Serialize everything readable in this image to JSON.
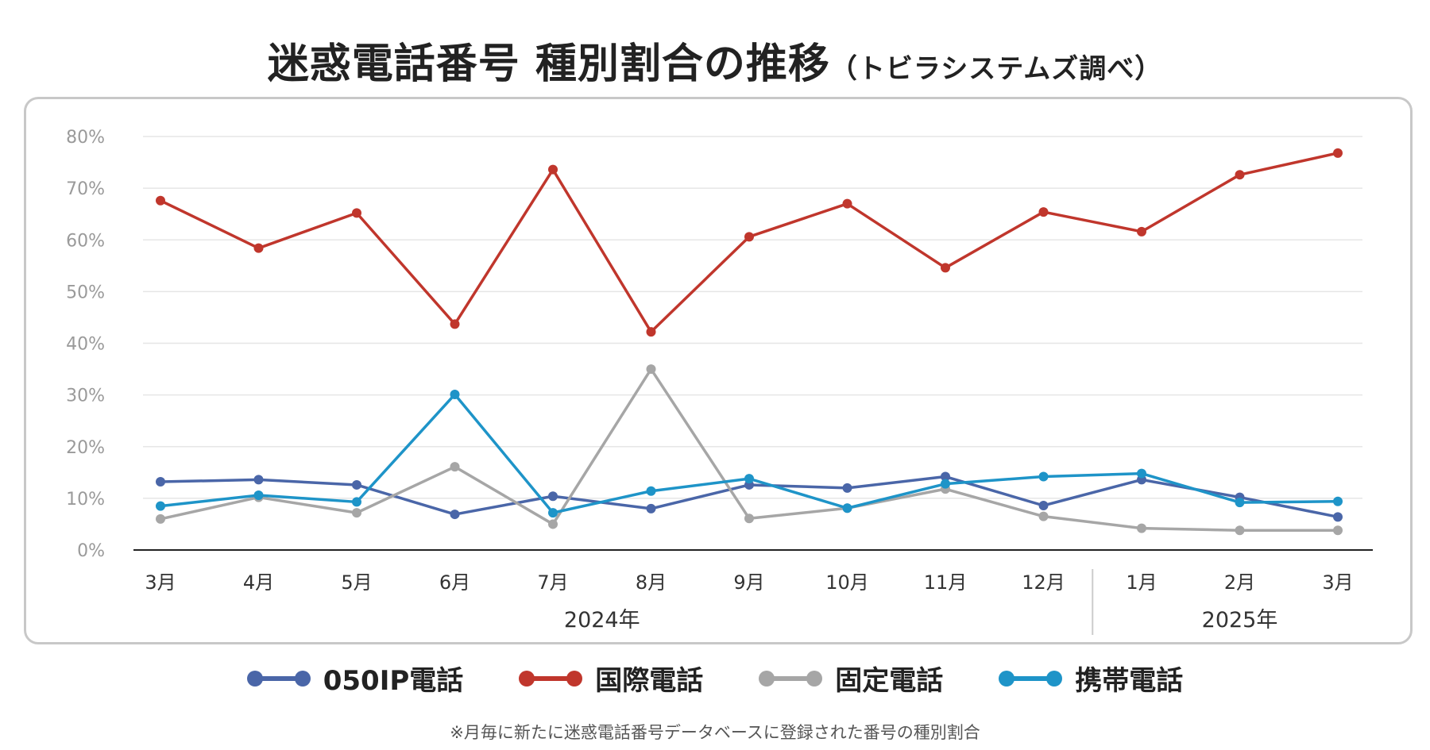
{
  "title": {
    "main": "迷惑電話番号 種別割合の推移",
    "sub": "（トビラシステムズ調べ）"
  },
  "footnote": "※月毎に新たに迷惑電話番号データベースに登録された番号の種別割合",
  "chart_data": {
    "type": "line",
    "title": "迷惑電話番号 種別割合の推移",
    "categories": [
      "3月",
      "4月",
      "5月",
      "6月",
      "7月",
      "8月",
      "9月",
      "10月",
      "11月",
      "12月",
      "1月",
      "2月",
      "3月"
    ],
    "year_groups": [
      {
        "label": "2024年",
        "start": 0,
        "end": 9
      },
      {
        "label": "2025年",
        "start": 10,
        "end": 12
      }
    ],
    "y_ticks": [
      "0%",
      "10%",
      "20%",
      "30%",
      "40%",
      "50%",
      "60%",
      "70%",
      "80%"
    ],
    "ylim": [
      0,
      80
    ],
    "grid": true,
    "series": [
      {
        "name": "050IP電話",
        "color": "#4a66a8",
        "values": [
          13.2,
          13.6,
          12.6,
          6.9,
          10.4,
          8.0,
          12.6,
          12.0,
          14.2,
          8.6,
          13.6,
          10.2,
          6.4
        ]
      },
      {
        "name": "国際電話",
        "color": "#c0362c",
        "values": [
          67.6,
          58.4,
          65.2,
          43.7,
          73.6,
          42.2,
          60.6,
          67.0,
          54.6,
          65.4,
          61.6,
          72.6,
          76.8
        ]
      },
      {
        "name": "固定電話",
        "color": "#a6a6a6",
        "values": [
          6.0,
          10.2,
          7.2,
          16.1,
          5.0,
          35.0,
          6.1,
          8.1,
          11.8,
          6.5,
          4.2,
          3.8,
          3.8
        ]
      },
      {
        "name": "携帯電話",
        "color": "#1e94c8",
        "values": [
          8.5,
          10.6,
          9.3,
          30.1,
          7.2,
          11.4,
          13.8,
          8.1,
          12.8,
          14.2,
          14.8,
          9.2,
          9.4
        ]
      }
    ]
  }
}
